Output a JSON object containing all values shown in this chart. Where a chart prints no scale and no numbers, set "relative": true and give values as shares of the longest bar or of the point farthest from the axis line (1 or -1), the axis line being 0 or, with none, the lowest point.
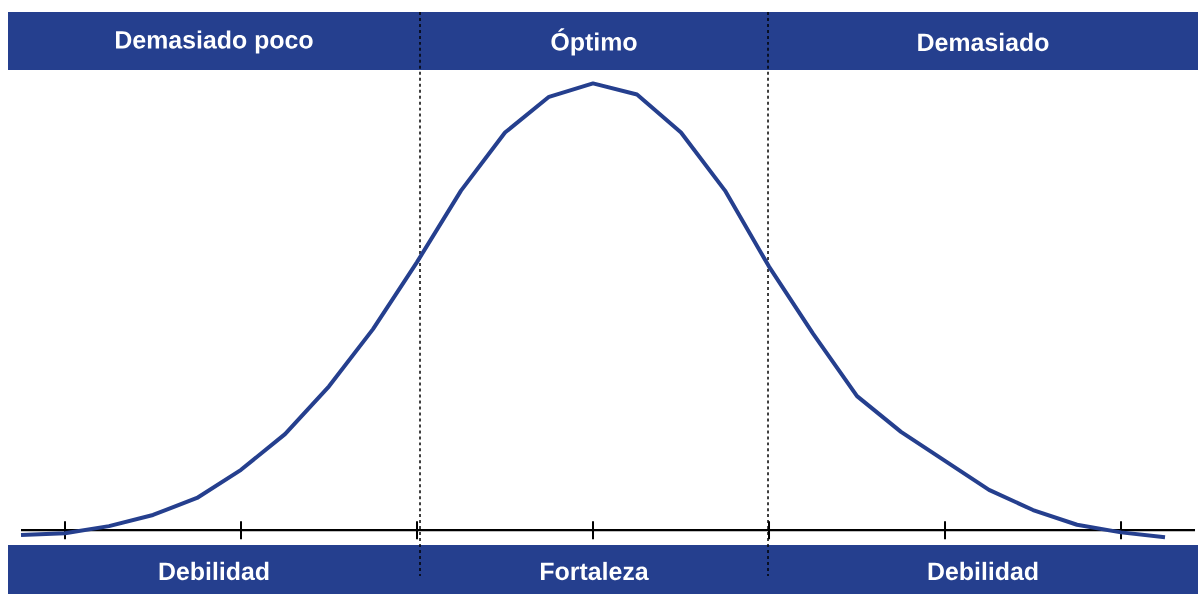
{
  "chart_data": {
    "type": "line",
    "relative": true,
    "categories": [
      null,
      null,
      null,
      null,
      null,
      null,
      null,
      null,
      null,
      null,
      null,
      null,
      null,
      null,
      null,
      null,
      null,
      null,
      null,
      null,
      null,
      null,
      null,
      null,
      null,
      null,
      null
    ],
    "series": [
      {
        "color": "#253f8e",
        "values": [
          -0.011,
          -0.007,
          0.009,
          0.034,
          0.072,
          0.135,
          0.215,
          0.322,
          0.45,
          0.6,
          0.76,
          0.89,
          0.97,
          1,
          0.975,
          0.89,
          0.76,
          0.59,
          0.44,
          0.3,
          0.22,
          0.155,
          0.09,
          0.045,
          0.012,
          -0.005,
          -0.016
        ]
      }
    ],
    "marker": "none",
    "line_style": "solid",
    "annotations": [
      "Demasiado poco",
      "Óptimo",
      "Demasiado",
      "Debilidad",
      "Fortaleza",
      "Debilidad"
    ]
  }
}
